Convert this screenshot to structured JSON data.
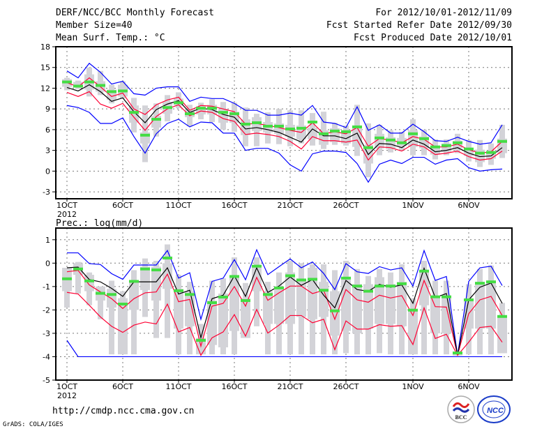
{
  "header": {
    "title": "DERF/NCC/BCC Monthly Forecast",
    "member_size": "Member Size=40",
    "variable": "Mean Surf. Temp.: °C",
    "period": "For 2012/10/01-2012/11/09",
    "started": "Fcst Started Refer Date 2012/09/30",
    "produced": "Fcst Produced Date 2012/10/01"
  },
  "footer": {
    "url": "http://cmdp.ncc.cma.gov.cn",
    "credit": "GrADS: COLA/IGES",
    "logo_bcc": "BCC",
    "logo_ncc": "NCC"
  },
  "colors": {
    "max_min": "#0000ff",
    "spread": "#ff0033",
    "mean": "#000000",
    "obs": "#44dd44",
    "box": "#d3d3d8"
  },
  "chart_data": [
    {
      "type": "line",
      "title": "Mean Surf. Temp.: °C",
      "xlabel": "",
      "ylabel": "",
      "ylim": [
        -4,
        18
      ],
      "yticks": [
        -3,
        0,
        3,
        6,
        9,
        12,
        15,
        18
      ],
      "xticks": [
        {
          "day": 0,
          "label": "1OCT"
        },
        {
          "day": 5,
          "label": "6OCT"
        },
        {
          "day": 10,
          "label": "11OCT"
        },
        {
          "day": 15,
          "label": "16OCT"
        },
        {
          "day": 20,
          "label": "21OCT"
        },
        {
          "day": 25,
          "label": "26OCT"
        },
        {
          "day": 31,
          "label": "1NOV"
        },
        {
          "day": 36,
          "label": "6NOV"
        }
      ],
      "year_label": "2012",
      "grid": true,
      "days": 40,
      "series": [
        {
          "name": "max",
          "color": "#0000ff",
          "values": [
            14.5,
            13.5,
            15.6,
            14.3,
            12.6,
            13.0,
            11.2,
            11.0,
            12.0,
            12.2,
            12.2,
            10.1,
            10.7,
            10.5,
            10.5,
            9.8,
            8.8,
            8.8,
            8.1,
            8.1,
            8.4,
            8.1,
            9.5,
            7.1,
            6.9,
            6.3,
            9.3,
            5.9,
            6.7,
            5.5,
            5.5,
            6.8,
            5.7,
            4.4,
            4.3,
            4.9,
            4.3,
            3.9,
            4.1,
            6.7
          ]
        },
        {
          "name": "upper",
          "color": "#ff0033",
          "values": [
            12.8,
            12.2,
            13.5,
            12.2,
            10.8,
            11.3,
            9.0,
            8.2,
            9.6,
            10.3,
            10.7,
            8.8,
            9.5,
            9.4,
            9.0,
            8.6,
            6.8,
            6.9,
            6.6,
            6.3,
            5.9,
            5.6,
            7.0,
            5.4,
            5.7,
            5.4,
            6.3,
            3.6,
            4.7,
            4.5,
            4.1,
            5.0,
            4.6,
            3.5,
            3.5,
            3.9,
            3.1,
            2.6,
            2.8,
            4.3
          ]
        },
        {
          "name": "mean",
          "color": "#000000",
          "values": [
            12.1,
            11.6,
            12.5,
            11.5,
            10.1,
            10.6,
            8.6,
            7.0,
            8.9,
            9.7,
            10.2,
            8.5,
            9.1,
            8.9,
            8.2,
            7.8,
            6.1,
            6.3,
            6.0,
            5.6,
            4.9,
            4.2,
            6.1,
            5.1,
            5.1,
            4.7,
            5.5,
            2.4,
            4.0,
            3.9,
            3.4,
            4.5,
            3.9,
            2.8,
            3.0,
            3.4,
            2.6,
            2.1,
            2.2,
            3.4
          ]
        },
        {
          "name": "lower",
          "color": "#ff0033",
          "values": [
            11.4,
            10.8,
            11.5,
            9.7,
            9.1,
            9.8,
            7.8,
            5.9,
            7.9,
            9.0,
            9.6,
            8.0,
            8.7,
            8.5,
            7.6,
            7.2,
            5.3,
            5.5,
            5.3,
            5.0,
            4.3,
            3.2,
            5.0,
            4.4,
            4.4,
            4.2,
            4.5,
            1.6,
            3.5,
            3.4,
            2.9,
            3.9,
            3.5,
            2.4,
            2.6,
            2.9,
            2.1,
            1.6,
            1.8,
            2.9
          ]
        },
        {
          "name": "min",
          "color": "#0000ff",
          "values": [
            9.5,
            9.2,
            8.5,
            6.9,
            6.9,
            7.7,
            5.0,
            2.6,
            5.4,
            6.9,
            7.5,
            6.4,
            7.1,
            7.0,
            5.5,
            5.5,
            3.0,
            3.3,
            3.3,
            2.6,
            0.9,
            0.0,
            2.5,
            2.9,
            2.9,
            2.7,
            1.1,
            -1.6,
            1.0,
            1.6,
            1.1,
            2.0,
            2.0,
            1.0,
            1.6,
            1.8,
            0.5,
            0.0,
            0.2,
            0.3
          ]
        }
      ],
      "observed": [
        12.9,
        12.3,
        12.9,
        12.4,
        11.5,
        11.6,
        8.5,
        5.2,
        7.5,
        9.2,
        9.9,
        8.3,
        9.1,
        9.1,
        8.5,
        8.3,
        6.8,
        7.0,
        6.5,
        6.5,
        6.1,
        6.2,
        7.1,
        5.4,
        5.8,
        5.7,
        6.4,
        3.4,
        4.8,
        4.5,
        4.1,
        5.4,
        4.7,
        3.5,
        3.7,
        4.1,
        3.2,
        2.6,
        2.7,
        4.3
      ],
      "boxes": [
        [
          11.7,
          12.2,
          13.3,
          13.5
        ],
        [
          11.9,
          12.1,
          12.9,
          13.1
        ],
        [
          10.8,
          11.8,
          14.0,
          15.0
        ],
        [
          11.0,
          11.5,
          13.0,
          14.5
        ],
        [
          9.8,
          10.3,
          11.8,
          12.5
        ],
        [
          10.5,
          10.8,
          12.5,
          13.0
        ],
        [
          5.6,
          7.0,
          9.5,
          10.6
        ],
        [
          1.3,
          4.0,
          5.6,
          9.5
        ],
        [
          5.0,
          6.3,
          8.0,
          9.8
        ],
        [
          7.2,
          8.3,
          10.0,
          11.0
        ],
        [
          9.1,
          9.5,
          10.5,
          11.4
        ],
        [
          6.5,
          7.8,
          9.0,
          9.6
        ],
        [
          7.5,
          8.2,
          9.4,
          9.9
        ],
        [
          7.1,
          8.2,
          9.6,
          10.4
        ],
        [
          6.0,
          7.0,
          9.0,
          10.0
        ],
        [
          5.7,
          7.0,
          8.6,
          9.9
        ],
        [
          3.6,
          5.2,
          7.5,
          9.2
        ],
        [
          3.6,
          5.8,
          7.8,
          8.3
        ],
        [
          4.0,
          5.6,
          7.1,
          8.5
        ],
        [
          3.9,
          5.4,
          6.9,
          9.0
        ],
        [
          3.6,
          5.0,
          6.7,
          8.8
        ],
        [
          4.0,
          4.6,
          6.6,
          8.8
        ],
        [
          3.7,
          4.6,
          6.3,
          8.4
        ],
        [
          3.2,
          3.8,
          5.9,
          8.6
        ],
        [
          3.8,
          4.2,
          6.2,
          7.0
        ],
        [
          3.7,
          4.0,
          5.7,
          6.6
        ],
        [
          2.2,
          3.5,
          6.6,
          9.6
        ],
        [
          -0.9,
          1.1,
          3.8,
          6.9
        ],
        [
          2.3,
          3.3,
          5.4,
          6.7
        ],
        [
          2.7,
          3.2,
          4.9,
          5.9
        ],
        [
          3.0,
          3.6,
          4.8,
          5.7
        ],
        [
          2.3,
          3.5,
          5.9,
          7.5
        ],
        [
          2.3,
          3.3,
          5.0,
          6.0
        ],
        [
          1.7,
          2.4,
          3.7,
          4.6
        ],
        [
          2.3,
          2.8,
          4.0,
          4.6
        ],
        [
          2.6,
          3.3,
          4.4,
          5.4
        ],
        [
          1.4,
          2.2,
          3.2,
          4.5
        ],
        [
          0.6,
          1.3,
          3.1,
          4.5
        ],
        [
          0.9,
          1.8,
          2.8,
          4.0
        ],
        [
          1.9,
          2.6,
          4.7,
          6.7
        ]
      ]
    },
    {
      "type": "line",
      "title": "Prec.: log(mm/d)",
      "xlabel": "",
      "ylabel": "",
      "ylim": [
        -5,
        1.5
      ],
      "yticks": [
        -5,
        -4,
        -3,
        -2,
        -1,
        0,
        1
      ],
      "xticks": [
        {
          "day": 0,
          "label": "1OCT"
        },
        {
          "day": 5,
          "label": "6OCT"
        },
        {
          "day": 10,
          "label": "11OCT"
        },
        {
          "day": 15,
          "label": "16OCT"
        },
        {
          "day": 20,
          "label": "21OCT"
        },
        {
          "day": 25,
          "label": "26OCT"
        },
        {
          "day": 31,
          "label": "1NOV"
        },
        {
          "day": 36,
          "label": "6NOV"
        }
      ],
      "year_label": "2012",
      "grid": true,
      "days": 40,
      "series": [
        {
          "name": "max",
          "color": "#0000ff",
          "values": [
            0.44,
            0.44,
            -0.02,
            -0.06,
            -0.45,
            -0.69,
            -0.08,
            -0.08,
            -0.08,
            0.54,
            -0.64,
            -0.41,
            -2.4,
            -0.78,
            -0.64,
            0.15,
            -0.71,
            0.57,
            -0.49,
            -0.15,
            0.18,
            -0.2,
            0.05,
            -0.44,
            -1.13,
            -0.02,
            -0.37,
            -0.44,
            -0.15,
            -0.29,
            -0.2,
            -0.98,
            0.54,
            -0.74,
            -0.57,
            -3.94,
            -0.78,
            -0.2,
            -0.13,
            -0.96
          ]
        },
        {
          "name": "upper",
          "color": "#ff0033",
          "values": [
            -0.37,
            -0.31,
            -0.93,
            -1.23,
            -1.52,
            -1.94,
            -1.52,
            -1.27,
            -1.23,
            -0.47,
            -1.65,
            -1.55,
            -3.55,
            -1.84,
            -1.72,
            -1.0,
            -1.84,
            -0.61,
            -1.59,
            -1.27,
            -0.98,
            -0.98,
            -1.3,
            -1.16,
            -2.4,
            -1.13,
            -1.57,
            -1.67,
            -1.37,
            -1.49,
            -1.39,
            -2.24,
            -0.74,
            -1.86,
            -1.88,
            -3.94,
            -2.16,
            -1.57,
            -1.42,
            -2.24
          ]
        },
        {
          "name": "mean",
          "color": "#000000",
          "values": [
            -0.2,
            -0.17,
            -0.7,
            -0.8,
            -1.08,
            -1.42,
            -0.8,
            -0.8,
            -0.8,
            -0.2,
            -1.32,
            -1.16,
            -3.19,
            -1.52,
            -1.37,
            -0.54,
            -1.42,
            -0.2,
            -1.25,
            -0.98,
            -0.59,
            -0.95,
            -0.7,
            -1.37,
            -1.91,
            -0.74,
            -1.13,
            -1.2,
            -0.91,
            -1.03,
            -0.93,
            -1.72,
            -0.22,
            -1.47,
            -1.3,
            -3.94,
            -1.57,
            -1.03,
            -0.85,
            -1.72
          ]
        },
        {
          "name": "lower",
          "color": "#ff0033",
          "values": [
            -1.25,
            -1.32,
            -1.8,
            -2.3,
            -2.7,
            -2.96,
            -2.65,
            -2.52,
            -2.6,
            -1.75,
            -2.94,
            -2.75,
            -3.94,
            -3.19,
            -2.94,
            -2.2,
            -3.12,
            -1.98,
            -2.99,
            -2.65,
            -2.24,
            -2.24,
            -2.55,
            -2.4,
            -3.7,
            -2.47,
            -2.82,
            -2.82,
            -2.63,
            -2.7,
            -2.67,
            -3.48,
            -1.91,
            -3.22,
            -3.04,
            -3.94,
            -3.38,
            -2.75,
            -2.7,
            -3.38
          ]
        },
        {
          "name": "min",
          "color": "#0000ff",
          "values": [
            -3.3,
            -4,
            -4,
            -4,
            -4,
            -4,
            -4,
            -4,
            -4,
            -4,
            -4,
            -4,
            -4,
            -4,
            -4,
            -4,
            -4,
            -4,
            -4,
            -4,
            -4,
            -4,
            -4,
            -4,
            -4,
            -4,
            -4,
            -4,
            -4,
            -4,
            -4,
            -4,
            -4,
            -4,
            -4,
            -4,
            -4,
            -4,
            -4,
            -4
          ]
        }
      ],
      "observed": [
        -0.67,
        -0.25,
        -0.76,
        -1.29,
        -1.34,
        -1.75,
        -0.78,
        -0.25,
        -0.29,
        0.22,
        -1.18,
        -1.34,
        -3.3,
        -1.69,
        -1.45,
        -0.57,
        -1.6,
        -0.13,
        -1.34,
        -1.06,
        -0.54,
        -0.72,
        -0.69,
        -1.16,
        -2.04,
        -0.64,
        -0.98,
        -1.2,
        -0.98,
        -0.98,
        -0.88,
        -2.01,
        -0.34,
        -1.44,
        -1.44,
        -3.84,
        -1.57,
        -0.86,
        -0.8,
        -2.28
      ],
      "boxes": [
        [
          -1.9,
          -1.2,
          -0.2,
          -0.2
        ],
        [
          -1.3,
          -0.5,
          0.0,
          0.05
        ],
        [
          -1.8,
          -1.2,
          -0.5,
          -0.4
        ],
        [
          -2.4,
          -1.6,
          -1.0,
          -1.0
        ],
        [
          -3.9,
          -1.9,
          -1.1,
          -0.75
        ],
        [
          -3.9,
          -3.9,
          -1.5,
          -1.2
        ],
        [
          -3.9,
          -2.0,
          -0.8,
          -0.3
        ],
        [
          -2.3,
          -1.15,
          -0.15,
          0.2
        ],
        [
          -3.2,
          -1.6,
          -0.15,
          0.1
        ],
        [
          -3.2,
          -1.1,
          0.0,
          0.8
        ],
        [
          -3.9,
          -2.8,
          -1.1,
          -0.5
        ],
        [
          -3.9,
          -2.7,
          -1.2,
          -0.8
        ],
        [
          -3.9,
          -3.9,
          -3.2,
          -2.6
        ],
        [
          -3.9,
          -3.5,
          -1.6,
          -0.75
        ],
        [
          -3.9,
          -3.6,
          -1.3,
          -0.65
        ],
        [
          -3.9,
          -2.9,
          -0.6,
          0.25
        ],
        [
          -3.2,
          -3.2,
          -1.5,
          -0.85
        ],
        [
          -2.7,
          -1.2,
          -0.1,
          0.25
        ],
        [
          -3.9,
          -2.6,
          -1.2,
          -0.8
        ],
        [
          -3.9,
          -2.6,
          -1.0,
          -0.4
        ],
        [
          -3.9,
          -2.6,
          -0.4,
          0.1
        ],
        [
          -3.9,
          -2.3,
          -0.7,
          0.0
        ],
        [
          -3.9,
          -2.4,
          -0.2,
          -0.05
        ],
        [
          -3.9,
          -2.3,
          -0.8,
          -0.05
        ],
        [
          -3.9,
          -3.1,
          -1.2,
          -0.3
        ],
        [
          -3.85,
          -2.9,
          -0.7,
          0.1
        ],
        [
          -3.9,
          -3.0,
          -0.9,
          -0.25
        ],
        [
          -3.9,
          -2.8,
          -0.9,
          -0.55
        ],
        [
          -3.85,
          -2.6,
          -0.6,
          -0.25
        ],
        [
          -3.9,
          -2.6,
          -0.9,
          -0.4
        ],
        [
          -3.9,
          -2.7,
          -0.8,
          -0.05
        ],
        [
          -3.9,
          -3.9,
          -2.0,
          -1.5
        ],
        [
          -3.9,
          -1.8,
          -0.3,
          0.1
        ],
        [
          -3.9,
          -3.0,
          -1.4,
          -0.75
        ],
        [
          -3.9,
          -3.0,
          -1.4,
          -0.75
        ],
        [
          -3.95,
          -3.95,
          -3.85,
          -3.85
        ],
        [
          -3.9,
          -2.8,
          -1.6,
          -0.9
        ],
        [
          -3.9,
          -2.8,
          -0.8,
          -0.25
        ],
        [
          -3.9,
          -2.8,
          -0.8,
          -0.1
        ],
        [
          -3.85,
          -3.85,
          -2.3,
          -1.7
        ]
      ]
    }
  ]
}
